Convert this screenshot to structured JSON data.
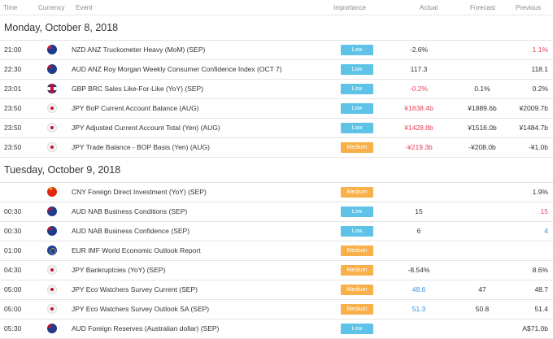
{
  "header": {
    "time": "Time",
    "currency": "Currency",
    "event": "Event",
    "importance": "Importance",
    "actual": "Actual",
    "forecast": "Forecast",
    "previous": "Previous"
  },
  "colors": {
    "low": "#5ec3e6",
    "medium": "#f7b04a",
    "negative": "#e8425a",
    "positive": "#3b8ed6"
  },
  "days": [
    {
      "label": "Monday, October 8, 2018",
      "rows": [
        {
          "time": "21:00",
          "flag": "nz",
          "event": "NZD ANZ Truckometer Heavy (MoM) (SEP)",
          "importance": "Low",
          "actual": "-2.6%",
          "actual_color": "",
          "forecast": "",
          "forecast_color": "",
          "previous": "1.1%",
          "previous_color": "red"
        },
        {
          "time": "22:30",
          "flag": "au",
          "event": "AUD ANZ Roy Morgan Weekly Consumer Confidence Index (OCT 7)",
          "importance": "Low",
          "actual": "117.3",
          "actual_color": "",
          "forecast": "",
          "forecast_color": "",
          "previous": "118.1",
          "previous_color": ""
        },
        {
          "time": "23:01",
          "flag": "gb",
          "event": "GBP BRC Sales Like-For-Like (YoY) (SEP)",
          "importance": "Low",
          "actual": "-0.2%",
          "actual_color": "red",
          "forecast": "0.1%",
          "forecast_color": "",
          "previous": "0.2%",
          "previous_color": ""
        },
        {
          "time": "23:50",
          "flag": "jp",
          "event": "JPY BoP Current Account Balance (AUG)",
          "importance": "Low",
          "actual": "¥1838.4b",
          "actual_color": "red",
          "forecast": "¥1889.6b",
          "forecast_color": "",
          "previous": "¥2009.7b",
          "previous_color": ""
        },
        {
          "time": "23:50",
          "flag": "jp",
          "event": "JPY Adjusted Current Account Total (Yen) (AUG)",
          "importance": "Low",
          "actual": "¥1428.8b",
          "actual_color": "red",
          "forecast": "¥1516.0b",
          "forecast_color": "",
          "previous": "¥1484.7b",
          "previous_color": ""
        },
        {
          "time": "23:50",
          "flag": "jp",
          "event": "JPY Trade Balance - BOP Basis (Yen) (AUG)",
          "importance": "Medium",
          "actual": "-¥219.3b",
          "actual_color": "red",
          "forecast": "-¥208.0b",
          "forecast_color": "",
          "previous": "-¥1.0b",
          "previous_color": ""
        }
      ]
    },
    {
      "label": "Tuesday, October 9, 2018",
      "rows": [
        {
          "time": "",
          "flag": "cn",
          "event": "CNY Foreign Direct Investment (YoY) (SEP)",
          "importance": "Medium",
          "actual": "",
          "actual_color": "",
          "forecast": "",
          "forecast_color": "",
          "previous": "1.9%",
          "previous_color": ""
        },
        {
          "time": "00:30",
          "flag": "au",
          "event": "AUD NAB Business Conditions (SEP)",
          "importance": "Low",
          "actual": "15",
          "actual_color": "",
          "forecast": "",
          "forecast_color": "",
          "previous": "15",
          "previous_color": "red"
        },
        {
          "time": "00:30",
          "flag": "au",
          "event": "AUD NAB Business Confidence (SEP)",
          "importance": "Low",
          "actual": "6",
          "actual_color": "",
          "forecast": "",
          "forecast_color": "",
          "previous": "4",
          "previous_color": "blue"
        },
        {
          "time": "01:00",
          "flag": "eu",
          "event": "EUR IMF World Economic Outlook Report",
          "importance": "Medium",
          "actual": "",
          "actual_color": "",
          "forecast": "",
          "forecast_color": "",
          "previous": "",
          "previous_color": ""
        },
        {
          "time": "04:30",
          "flag": "jp",
          "event": "JPY Bankruptcies (YoY) (SEP)",
          "importance": "Medium",
          "actual": "-8.54%",
          "actual_color": "",
          "forecast": "",
          "forecast_color": "",
          "previous": "8.6%",
          "previous_color": ""
        },
        {
          "time": "05:00",
          "flag": "jp",
          "event": "JPY Eco Watchers Survey Current (SEP)",
          "importance": "Medium",
          "actual": "48.6",
          "actual_color": "blue",
          "forecast": "47",
          "forecast_color": "",
          "previous": "48.7",
          "previous_color": ""
        },
        {
          "time": "05:00",
          "flag": "jp",
          "event": "JPY Eco Watchers Survey Outlook SA (SEP)",
          "importance": "Medium",
          "actual": "51.3",
          "actual_color": "blue",
          "forecast": "50.8",
          "forecast_color": "",
          "previous": "51.4",
          "previous_color": ""
        },
        {
          "time": "05:30",
          "flag": "au",
          "event": "AUD Foreign Reserves (Australian dollar) (SEP)",
          "importance": "Low",
          "actual": "",
          "actual_color": "",
          "forecast": "",
          "forecast_color": "",
          "previous": "A$71.0b",
          "previous_color": ""
        }
      ]
    }
  ]
}
